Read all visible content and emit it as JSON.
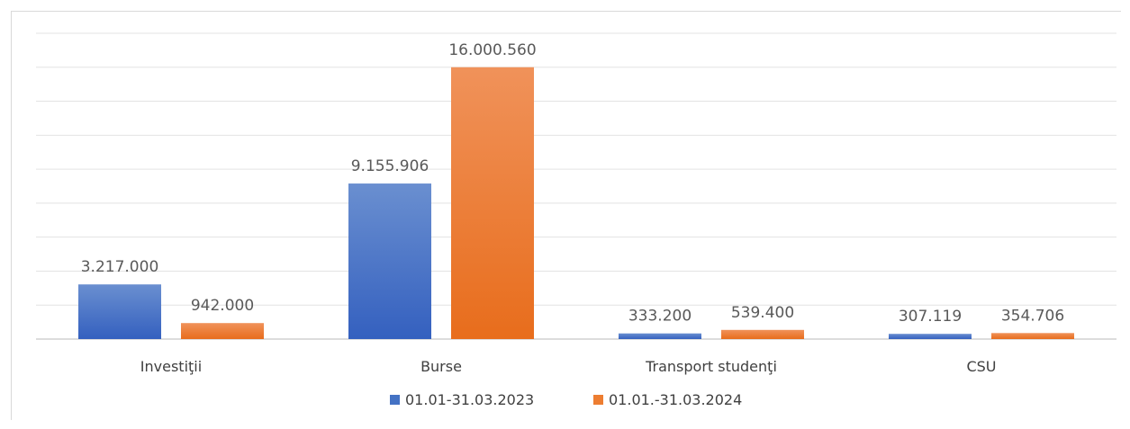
{
  "chart_data": {
    "type": "bar",
    "categories": [
      "Investiţii",
      "Burse",
      "Transport studenţi",
      "CSU"
    ],
    "series": [
      {
        "name": "01.01-31.03.2023",
        "values": [
          3217000,
          9155906,
          333200,
          307119
        ],
        "labels": [
          "3.217.000",
          "9.155.906",
          "333.200",
          "307.119"
        ],
        "color": "#4472c4"
      },
      {
        "name": "01.01.-31.03.2024",
        "values": [
          942000,
          16000560,
          539400,
          354706
        ],
        "labels": [
          "942.000",
          "16.000.560",
          "539.400",
          "354.706"
        ],
        "color": "#ed7d31"
      }
    ],
    "ylim": [
      0,
      18000000
    ],
    "grid": true,
    "legend_position": "bottom"
  }
}
